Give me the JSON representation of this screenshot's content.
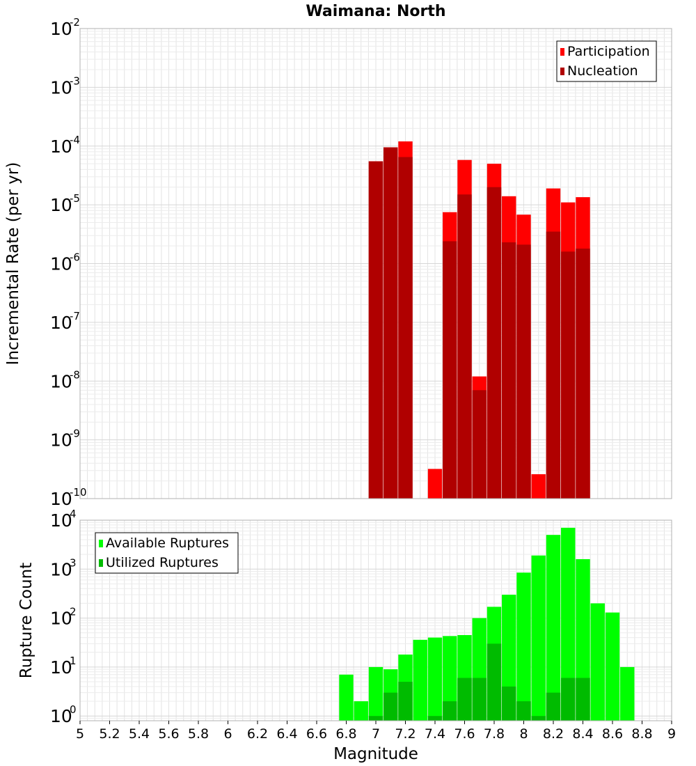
{
  "chart_data": [
    {
      "type": "bar",
      "title": "Waimana: North",
      "xlabel": "",
      "ylabel": "Incremental Rate (per yr)",
      "yscale": "log",
      "ylim": [
        1e-10,
        0.01
      ],
      "xlim": [
        5,
        9
      ],
      "grid": true,
      "legend_position": "top-right",
      "x": [
        7.0,
        7.1,
        7.2,
        7.3,
        7.4,
        7.5,
        7.6,
        7.7,
        7.8,
        7.9,
        8.0,
        8.1,
        8.2,
        8.3,
        8.4
      ],
      "series": [
        {
          "name": "Participation",
          "color": "#ff0000",
          "values": [
            5.5e-05,
            9.5e-05,
            0.00012,
            null,
            3.2e-10,
            7.5e-06,
            5.8e-05,
            1.2e-08,
            5e-05,
            1.4e-05,
            6.8e-06,
            2.6e-10,
            1.9e-05,
            1.1e-05,
            1.35e-05
          ]
        },
        {
          "name": "Nucleation",
          "color": "#b00000",
          "values": [
            5.5e-05,
            9.5e-05,
            6.5e-05,
            null,
            null,
            2.4e-06,
            1.5e-05,
            7e-09,
            2e-05,
            2.3e-06,
            2.1e-06,
            null,
            3.5e-06,
            1.6e-06,
            1.8e-06
          ]
        }
      ],
      "ytick_labels": [
        {
          "base": "10",
          "exp": "-2"
        },
        {
          "base": "10",
          "exp": "-3"
        },
        {
          "base": "10",
          "exp": "-4"
        },
        {
          "base": "10",
          "exp": "-5"
        },
        {
          "base": "10",
          "exp": "-6"
        },
        {
          "base": "10",
          "exp": "-7"
        },
        {
          "base": "10",
          "exp": "-8"
        },
        {
          "base": "10",
          "exp": "-9"
        },
        {
          "base": "10",
          "exp": "-10"
        }
      ]
    },
    {
      "type": "bar",
      "title": "",
      "xlabel": "Magnitude",
      "ylabel": "Rupture Count",
      "yscale": "log",
      "ylim": [
        0.8,
        10000
      ],
      "xlim": [
        5,
        9
      ],
      "grid": true,
      "legend_position": "top-left",
      "x": [
        6.8,
        6.9,
        7.0,
        7.1,
        7.2,
        7.3,
        7.4,
        7.5,
        7.6,
        7.7,
        7.8,
        7.9,
        8.0,
        8.1,
        8.2,
        8.3,
        8.4,
        8.5,
        8.6,
        8.7
      ],
      "series": [
        {
          "name": "Available Ruptures",
          "color": "#00ff00",
          "values": [
            7,
            2,
            10,
            9,
            18,
            36,
            40,
            43,
            45,
            100,
            170,
            300,
            850,
            1900,
            5000,
            7000,
            1600,
            200,
            130,
            10
          ]
        },
        {
          "name": "Utilized Ruptures",
          "color": "#00bb00",
          "values": [
            null,
            null,
            1,
            3,
            5,
            null,
            1,
            2,
            6,
            6,
            30,
            4,
            2,
            1,
            3,
            6,
            6,
            null,
            null,
            null
          ]
        }
      ],
      "xtick_labels": [
        "5",
        "5.2",
        "5.4",
        "5.6",
        "5.8",
        "6",
        "6.2",
        "6.4",
        "6.6",
        "6.8",
        "7",
        "7.2",
        "7.4",
        "7.6",
        "7.8",
        "8",
        "8.2",
        "8.4",
        "8.6",
        "8.8",
        "9"
      ],
      "ytick_labels": [
        {
          "base": "10",
          "exp": "4"
        },
        {
          "base": "10",
          "exp": "3"
        },
        {
          "base": "10",
          "exp": "2"
        },
        {
          "base": "10",
          "exp": "1"
        },
        {
          "base": "10",
          "exp": "0"
        }
      ]
    }
  ]
}
